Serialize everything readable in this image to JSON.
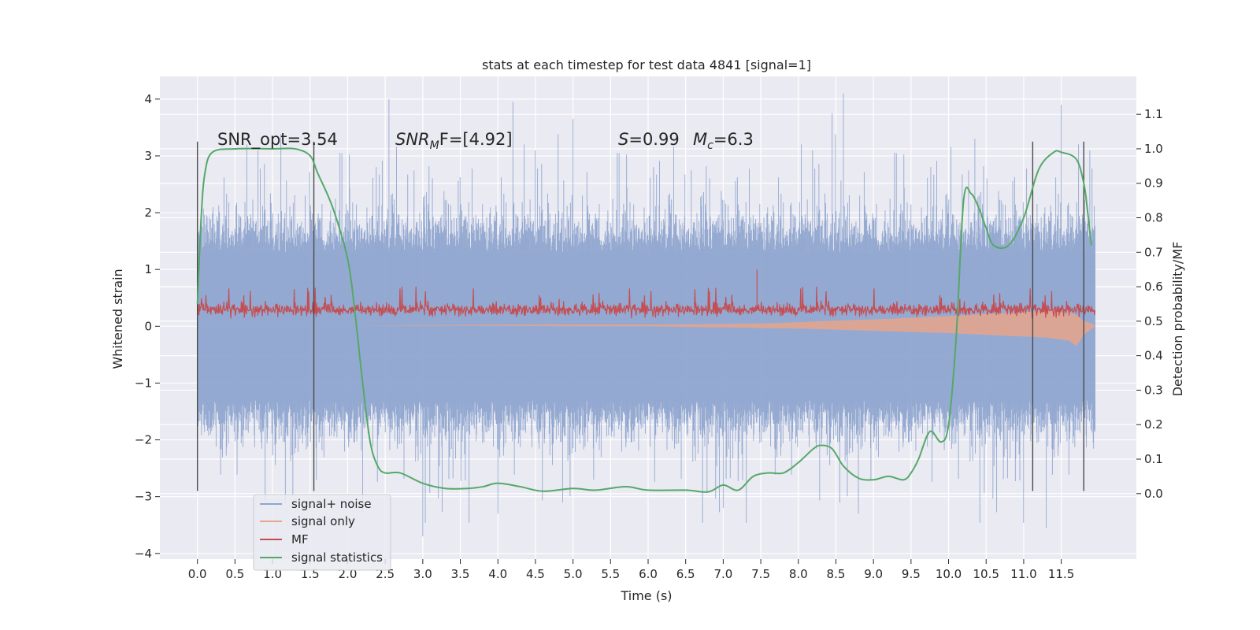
{
  "chart_data": {
    "type": "line",
    "title": "stats at each timestep for test data 4841 [signal=1]",
    "xlabel": "Time (s)",
    "ylabel": "Whitened strain",
    "ylabel_right": "Detection probability/MF",
    "xlim": [
      -0.5,
      12.5
    ],
    "ylim": [
      -4.1,
      4.4
    ],
    "ylim_right": [
      -0.19,
      1.21
    ],
    "x_ticks": [
      "0.0",
      "0.5",
      "1.0",
      "1.5",
      "2.0",
      "2.5",
      "3.0",
      "3.5",
      "4.0",
      "4.5",
      "5.0",
      "5.5",
      "6.0",
      "6.5",
      "7.0",
      "7.5",
      "8.0",
      "8.5",
      "9.0",
      "9.5",
      "10.0",
      "10.5",
      "11.0",
      "11.5"
    ],
    "y_ticks": [
      "4",
      "3",
      "2",
      "1",
      "0",
      "−1",
      "−2",
      "−3",
      "−4"
    ],
    "y_ticks_right": [
      "1.1",
      "1.0",
      "0.9",
      "0.8",
      "0.7",
      "0.6",
      "0.5",
      "0.4",
      "0.3",
      "0.2",
      "0.1",
      "0.0"
    ],
    "grid": true,
    "legend_position": "lower-left",
    "annotations": {
      "snr_opt": "SNR_opt=3.54",
      "snr_mf_sym": "SNR",
      "snr_mf_sub": "M",
      "snr_mf_rest": "F=[4.92]",
      "s_sym": "S",
      "s_val": "=0.99",
      "mc_sym": "M",
      "mc_sub": "c",
      "mc_val": "=6.3"
    },
    "series": [
      {
        "name": "signal+ noise",
        "color": "#8fa5cf",
        "kind": "noise",
        "t_range": [
          0.0,
          11.95
        ],
        "envelope_typical": 2.0,
        "max": 4.1,
        "min": -3.7
      },
      {
        "name": "signal only",
        "color": "#e7a58c",
        "kind": "signal",
        "t": [
          0,
          1,
          2,
          3,
          4,
          5,
          6,
          7,
          7.5,
          8,
          8.5,
          9,
          9.5,
          10,
          10.5,
          11,
          11.3,
          11.6,
          11.7,
          11.8,
          11.95
        ],
        "y": [
          0.02,
          0.02,
          0.02,
          0.01,
          0.01,
          0.0,
          0.0,
          -0.02,
          -0.03,
          -0.04,
          -0.06,
          -0.08,
          -0.1,
          -0.12,
          -0.15,
          -0.18,
          -0.2,
          -0.25,
          -0.35,
          -0.15,
          0.0
        ],
        "y_upper": [
          0.02,
          0.02,
          0.02,
          0.02,
          0.03,
          0.03,
          0.03,
          0.04,
          0.05,
          0.07,
          0.1,
          0.12,
          0.15,
          0.18,
          0.22,
          0.25,
          0.28,
          0.25,
          0.2,
          0.1,
          0.02
        ]
      },
      {
        "name": "MF",
        "color": "#c44e52",
        "kind": "mf",
        "t_range": [
          0.0,
          11.95
        ],
        "base": 0.25,
        "peak_max": 1.0
      },
      {
        "name": "signal statistics",
        "color": "#55a868",
        "kind": "prob",
        "t": [
          0.0,
          0.05,
          0.1,
          0.2,
          0.5,
          1.0,
          1.3,
          1.5,
          1.6,
          1.8,
          2.0,
          2.1,
          2.2,
          2.3,
          2.4,
          2.5,
          2.7,
          3.0,
          3.3,
          3.6,
          3.8,
          4.0,
          4.3,
          4.6,
          5.0,
          5.3,
          5.7,
          6.0,
          6.5,
          6.8,
          7.0,
          7.2,
          7.4,
          7.6,
          7.8,
          8.0,
          8.2,
          8.3,
          8.45,
          8.6,
          8.8,
          9.0,
          9.2,
          9.4,
          9.5,
          9.6,
          9.75,
          9.9,
          10.0,
          10.1,
          10.2,
          10.3,
          10.4,
          10.5,
          10.6,
          10.8,
          11.0,
          11.2,
          11.4,
          11.5,
          11.7,
          11.8,
          11.85,
          11.9
        ],
        "y": [
          0.55,
          0.8,
          0.93,
          0.99,
          1.0,
          1.0,
          1.0,
          0.98,
          0.93,
          0.83,
          0.68,
          0.52,
          0.32,
          0.15,
          0.08,
          0.06,
          0.06,
          0.03,
          0.015,
          0.015,
          0.02,
          0.03,
          0.02,
          0.007,
          0.015,
          0.01,
          0.02,
          0.01,
          0.01,
          0.005,
          0.025,
          0.01,
          0.05,
          0.06,
          0.06,
          0.09,
          0.13,
          0.14,
          0.13,
          0.08,
          0.045,
          0.04,
          0.05,
          0.04,
          0.06,
          0.1,
          0.18,
          0.15,
          0.2,
          0.45,
          0.85,
          0.87,
          0.83,
          0.77,
          0.72,
          0.72,
          0.8,
          0.94,
          0.99,
          0.99,
          0.97,
          0.9,
          0.82,
          0.72
        ]
      }
    ],
    "vertical_lines": [
      {
        "x": 0.0,
        "y_from": -2.9,
        "y_to": 3.25
      },
      {
        "x": 1.55,
        "y_from": -2.9,
        "y_to": 3.25
      },
      {
        "x": 11.12,
        "y_from": -2.9,
        "y_to": 3.25
      },
      {
        "x": 11.8,
        "y_from": -2.9,
        "y_to": 3.25
      }
    ]
  }
}
